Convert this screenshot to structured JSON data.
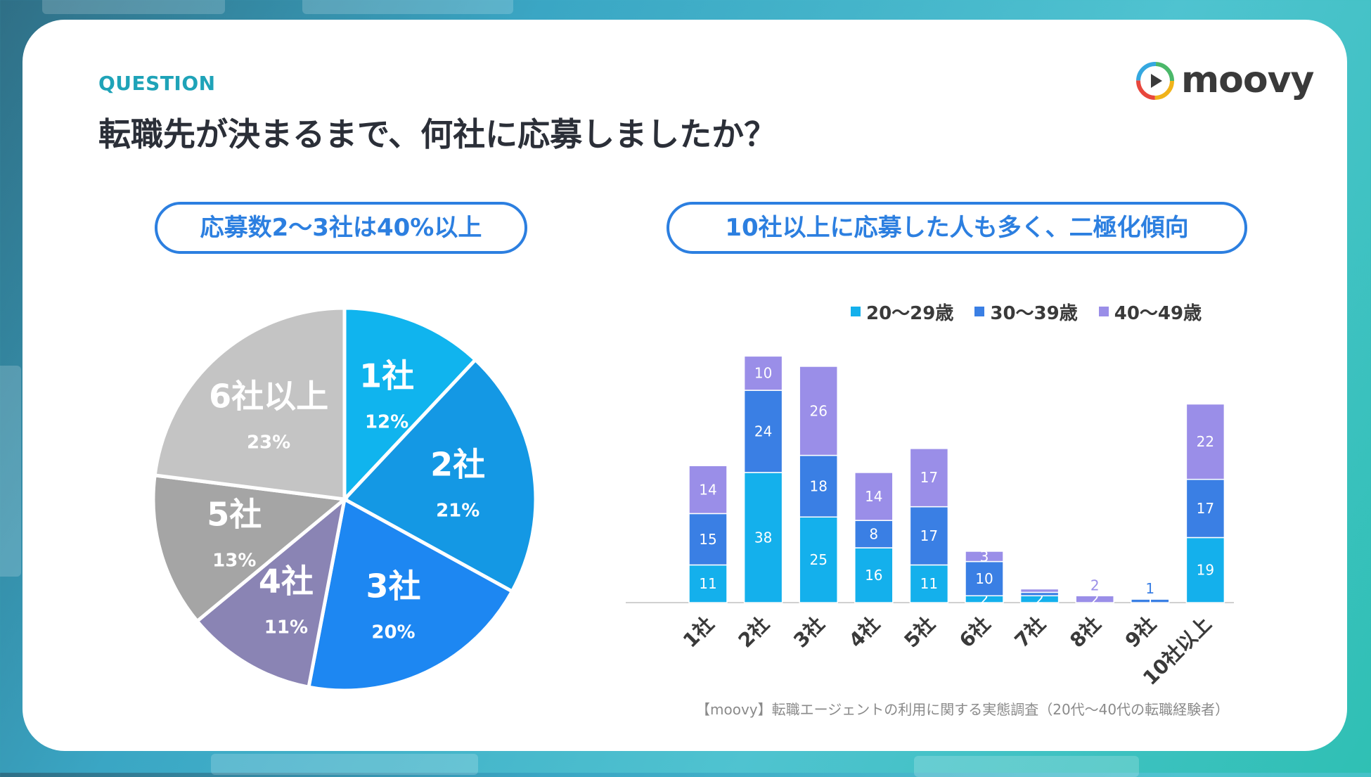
{
  "header": {
    "question_label": "QUESTION",
    "title": "転職先が決まるまで、何社に応募しましたか？"
  },
  "logo": {
    "text": "moovy"
  },
  "pills": {
    "left": "応募数2〜3社は40%以上",
    "right": "10社以上に応募した人も多く、二極化傾向"
  },
  "source": "【moovy】転職エージェントの利用に関する実態調査（20代〜40代の転職経験者）",
  "chart_data": [
    {
      "type": "pie",
      "title": "",
      "slices": [
        {
          "label": "1社",
          "value": 12,
          "pct": "12%",
          "color": "#10b4ee"
        },
        {
          "label": "2社",
          "value": 21,
          "pct": "21%",
          "color": "#1498e4"
        },
        {
          "label": "3社",
          "value": 20,
          "pct": "20%",
          "color": "#1d87f2"
        },
        {
          "label": "4社",
          "value": 11,
          "pct": "11%",
          "color": "#8a84b4"
        },
        {
          "label": "5社",
          "value": 13,
          "pct": "13%",
          "color": "#a5a5a5"
        },
        {
          "label": "6社以上",
          "value": 23,
          "pct": "23%",
          "color": "#c4c4c4"
        }
      ]
    },
    {
      "type": "bar",
      "stacked": true,
      "categories": [
        "1社",
        "2社",
        "3社",
        "4社",
        "5社",
        "6社",
        "7社",
        "8社",
        "9社",
        "10社以上"
      ],
      "series": [
        {
          "name": "20〜29歳",
          "color": "#14b0ec",
          "values": [
            11,
            38,
            25,
            16,
            11,
            2,
            2,
            0,
            0,
            19
          ]
        },
        {
          "name": "30〜39歳",
          "color": "#3a7fe4",
          "values": [
            15,
            24,
            18,
            8,
            17,
            10,
            1,
            0,
            1,
            17
          ]
        },
        {
          "name": "40〜49歳",
          "color": "#9a8ee8",
          "values": [
            14,
            10,
            26,
            14,
            17,
            3,
            1,
            2,
            0,
            22
          ]
        }
      ],
      "data_labels": [
        [
          "11",
          "38",
          "25",
          "16",
          "11",
          "2",
          "2",
          "",
          "",
          "19"
        ],
        [
          "15",
          "24",
          "18",
          "8",
          "17",
          "10",
          "",
          "",
          "1",
          "17"
        ],
        [
          "14",
          "10",
          "26",
          "14",
          "17",
          "3",
          "",
          "2",
          "",
          "22"
        ]
      ],
      "ylim": [
        0,
        75
      ],
      "legend_position": "top-right"
    }
  ]
}
